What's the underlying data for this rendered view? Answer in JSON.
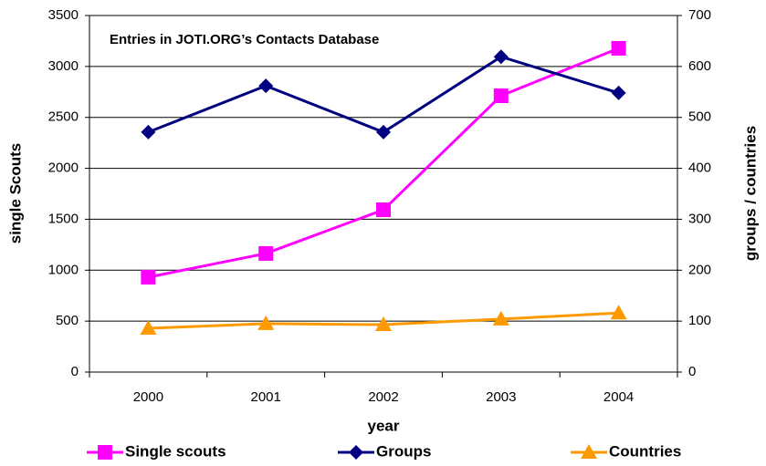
{
  "chart_data": {
    "type": "line",
    "title": "Entries in JOTI.ORG’s Contacts Database",
    "x_label": "year",
    "y_label": "single Scouts",
    "y2_label": "groups / countries",
    "categories": [
      "2000",
      "2001",
      "2002",
      "2003",
      "2004"
    ],
    "series": [
      {
        "name": "Single scouts",
        "color": "#ff00ff",
        "marker": "square",
        "values": [
          931,
          1164,
          1593,
          2712,
          3178
        ]
      },
      {
        "name": "Groups",
        "color": "#000080",
        "marker": "diamond",
        "axis": "y2",
        "values": [
          471,
          562,
          471,
          619,
          548
        ]
      },
      {
        "name": "Countries",
        "color": "#ff9900",
        "marker": "triangle",
        "axis": "y2",
        "values": [
          86,
          95,
          93,
          104,
          116
        ]
      }
    ],
    "ylim": [
      0,
      3500
    ],
    "yticks": [
      0,
      500,
      1000,
      1500,
      2000,
      2500,
      3000,
      3500
    ],
    "y2lim": [
      0,
      700
    ],
    "y2ticks": [
      0,
      100,
      200,
      300,
      400,
      500,
      600,
      700
    ],
    "grid": true,
    "legend": "bottom"
  }
}
